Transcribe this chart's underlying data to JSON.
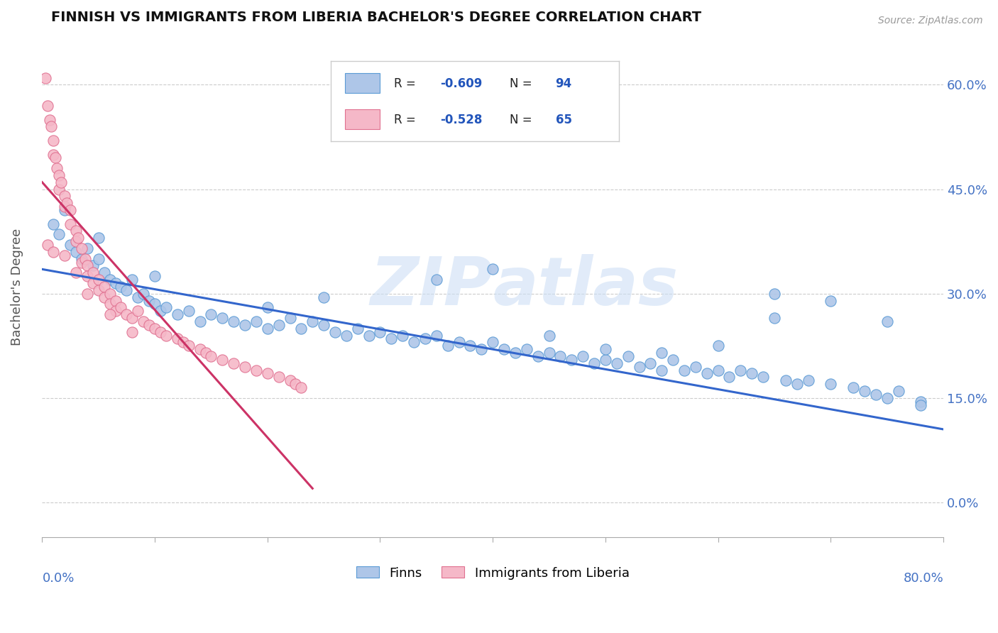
{
  "title": "FINNISH VS IMMIGRANTS FROM LIBERIA BACHELOR'S DEGREE CORRELATION CHART",
  "source": "Source: ZipAtlas.com",
  "ylabel": "Bachelor's Degree",
  "ytick_values": [
    0.0,
    15.0,
    30.0,
    45.0,
    60.0
  ],
  "xmin": 0.0,
  "xmax": 80.0,
  "ymin": -5.0,
  "ymax": 67.0,
  "finns_color": "#aec6e8",
  "finns_edge_color": "#5b9bd5",
  "liberia_color": "#f5b8c8",
  "liberia_edge_color": "#e07090",
  "finns_line_color": "#3366cc",
  "liberia_line_color": "#cc3366",
  "finns_R": -0.609,
  "finns_N": 94,
  "liberia_R": -0.528,
  "liberia_N": 65,
  "legend_text_color": "#2255bb",
  "watermark_color": "#cddff5",
  "finns_scatter": [
    [
      1.0,
      40.0
    ],
    [
      1.5,
      38.5
    ],
    [
      2.0,
      42.0
    ],
    [
      2.5,
      37.0
    ],
    [
      3.0,
      36.0
    ],
    [
      3.5,
      35.0
    ],
    [
      4.0,
      36.5
    ],
    [
      4.5,
      34.0
    ],
    [
      5.0,
      38.0
    ],
    [
      5.5,
      33.0
    ],
    [
      6.0,
      32.0
    ],
    [
      6.5,
      31.5
    ],
    [
      7.0,
      31.0
    ],
    [
      7.5,
      30.5
    ],
    [
      8.0,
      32.0
    ],
    [
      8.5,
      29.5
    ],
    [
      9.0,
      30.0
    ],
    [
      9.5,
      29.0
    ],
    [
      10.0,
      28.5
    ],
    [
      10.5,
      27.5
    ],
    [
      11.0,
      28.0
    ],
    [
      12.0,
      27.0
    ],
    [
      13.0,
      27.5
    ],
    [
      14.0,
      26.0
    ],
    [
      15.0,
      27.0
    ],
    [
      16.0,
      26.5
    ],
    [
      17.0,
      26.0
    ],
    [
      18.0,
      25.5
    ],
    [
      19.0,
      26.0
    ],
    [
      20.0,
      25.0
    ],
    [
      21.0,
      25.5
    ],
    [
      22.0,
      26.5
    ],
    [
      23.0,
      25.0
    ],
    [
      24.0,
      26.0
    ],
    [
      25.0,
      25.5
    ],
    [
      26.0,
      24.5
    ],
    [
      27.0,
      24.0
    ],
    [
      28.0,
      25.0
    ],
    [
      29.0,
      24.0
    ],
    [
      30.0,
      24.5
    ],
    [
      31.0,
      23.5
    ],
    [
      32.0,
      24.0
    ],
    [
      33.0,
      23.0
    ],
    [
      34.0,
      23.5
    ],
    [
      35.0,
      24.0
    ],
    [
      36.0,
      22.5
    ],
    [
      37.0,
      23.0
    ],
    [
      38.0,
      22.5
    ],
    [
      39.0,
      22.0
    ],
    [
      40.0,
      23.0
    ],
    [
      41.0,
      22.0
    ],
    [
      42.0,
      21.5
    ],
    [
      43.0,
      22.0
    ],
    [
      44.0,
      21.0
    ],
    [
      45.0,
      21.5
    ],
    [
      46.0,
      21.0
    ],
    [
      47.0,
      20.5
    ],
    [
      48.0,
      21.0
    ],
    [
      49.0,
      20.0
    ],
    [
      50.0,
      20.5
    ],
    [
      51.0,
      20.0
    ],
    [
      52.0,
      21.0
    ],
    [
      53.0,
      19.5
    ],
    [
      54.0,
      20.0
    ],
    [
      55.0,
      19.0
    ],
    [
      56.0,
      20.5
    ],
    [
      57.0,
      19.0
    ],
    [
      58.0,
      19.5
    ],
    [
      59.0,
      18.5
    ],
    [
      60.0,
      19.0
    ],
    [
      61.0,
      18.0
    ],
    [
      62.0,
      19.0
    ],
    [
      63.0,
      18.5
    ],
    [
      64.0,
      18.0
    ],
    [
      65.0,
      30.0
    ],
    [
      66.0,
      17.5
    ],
    [
      67.0,
      17.0
    ],
    [
      68.0,
      17.5
    ],
    [
      70.0,
      17.0
    ],
    [
      72.0,
      16.5
    ],
    [
      73.0,
      16.0
    ],
    [
      74.0,
      15.5
    ],
    [
      75.0,
      15.0
    ],
    [
      76.0,
      16.0
    ],
    [
      78.0,
      14.5
    ],
    [
      35.0,
      32.0
    ],
    [
      40.0,
      33.5
    ],
    [
      50.0,
      22.0
    ],
    [
      55.0,
      21.5
    ],
    [
      25.0,
      29.5
    ],
    [
      20.0,
      28.0
    ],
    [
      45.0,
      24.0
    ],
    [
      60.0,
      22.5
    ],
    [
      65.0,
      26.5
    ],
    [
      70.0,
      29.0
    ],
    [
      75.0,
      26.0
    ],
    [
      78.0,
      14.0
    ],
    [
      5.0,
      35.0
    ],
    [
      10.0,
      32.5
    ]
  ],
  "liberia_scatter": [
    [
      0.3,
      61.0
    ],
    [
      0.5,
      57.0
    ],
    [
      0.7,
      55.0
    ],
    [
      0.8,
      54.0
    ],
    [
      1.0,
      52.0
    ],
    [
      1.0,
      50.0
    ],
    [
      1.2,
      49.5
    ],
    [
      1.3,
      48.0
    ],
    [
      1.5,
      47.0
    ],
    [
      1.5,
      45.0
    ],
    [
      1.7,
      46.0
    ],
    [
      2.0,
      44.0
    ],
    [
      2.0,
      42.5
    ],
    [
      2.2,
      43.0
    ],
    [
      2.5,
      42.0
    ],
    [
      2.5,
      40.0
    ],
    [
      3.0,
      39.0
    ],
    [
      3.0,
      37.5
    ],
    [
      3.2,
      38.0
    ],
    [
      3.5,
      36.5
    ],
    [
      3.5,
      34.5
    ],
    [
      3.8,
      35.0
    ],
    [
      4.0,
      34.0
    ],
    [
      4.0,
      32.5
    ],
    [
      4.5,
      33.0
    ],
    [
      4.5,
      31.5
    ],
    [
      5.0,
      32.0
    ],
    [
      5.0,
      30.5
    ],
    [
      5.5,
      31.0
    ],
    [
      5.5,
      29.5
    ],
    [
      6.0,
      30.0
    ],
    [
      6.0,
      28.5
    ],
    [
      6.5,
      29.0
    ],
    [
      6.5,
      27.5
    ],
    [
      7.0,
      28.0
    ],
    [
      7.5,
      27.0
    ],
    [
      8.0,
      26.5
    ],
    [
      8.5,
      27.5
    ],
    [
      9.0,
      26.0
    ],
    [
      9.5,
      25.5
    ],
    [
      10.0,
      25.0
    ],
    [
      10.5,
      24.5
    ],
    [
      11.0,
      24.0
    ],
    [
      12.0,
      23.5
    ],
    [
      12.5,
      23.0
    ],
    [
      13.0,
      22.5
    ],
    [
      14.0,
      22.0
    ],
    [
      14.5,
      21.5
    ],
    [
      15.0,
      21.0
    ],
    [
      16.0,
      20.5
    ],
    [
      17.0,
      20.0
    ],
    [
      18.0,
      19.5
    ],
    [
      19.0,
      19.0
    ],
    [
      20.0,
      18.5
    ],
    [
      21.0,
      18.0
    ],
    [
      22.0,
      17.5
    ],
    [
      22.5,
      17.0
    ],
    [
      23.0,
      16.5
    ],
    [
      0.5,
      37.0
    ],
    [
      1.0,
      36.0
    ],
    [
      2.0,
      35.5
    ],
    [
      3.0,
      33.0
    ],
    [
      4.0,
      30.0
    ],
    [
      6.0,
      27.0
    ],
    [
      8.0,
      24.5
    ]
  ],
  "finns_line_x": [
    0.0,
    80.0
  ],
  "finns_line_y_start": 33.5,
  "finns_line_y_end": 10.5,
  "liberia_line_x": [
    0.0,
    24.0
  ],
  "liberia_line_y_start": 46.0,
  "liberia_line_y_end": 2.0
}
